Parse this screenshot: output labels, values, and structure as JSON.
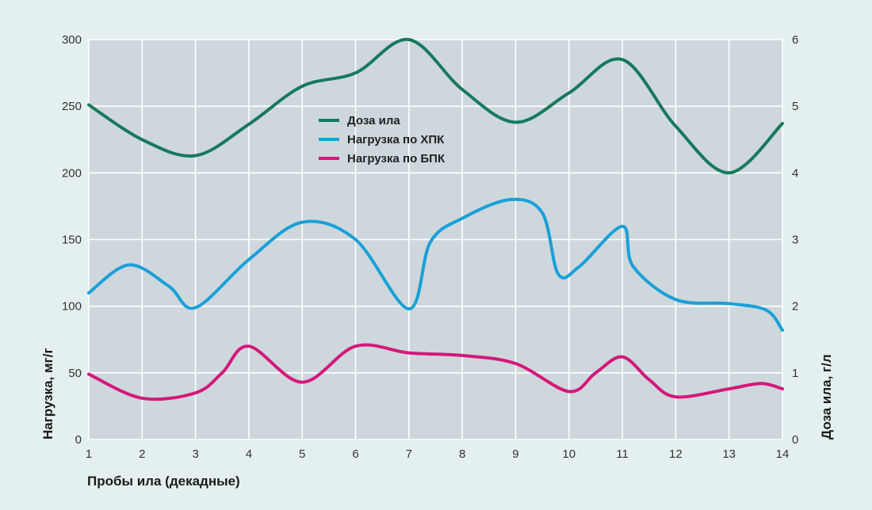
{
  "chart_data": {
    "type": "line",
    "xlabel": "Пробы ила (декадные)",
    "ylabel": "Нагрузка, мг/г",
    "y2label": "Доза ила, г/л",
    "x_ticks": [
      "1",
      "2",
      "3",
      "4",
      "5",
      "6",
      "7",
      "8",
      "9",
      "10",
      "11",
      "12",
      "13",
      "14"
    ],
    "y_ticks": [
      "0",
      "50",
      "100",
      "150",
      "200",
      "250",
      "300"
    ],
    "y2_ticks": [
      "0",
      "1",
      "2",
      "3",
      "4",
      "5",
      "6"
    ],
    "xlim": [
      1,
      14
    ],
    "ylim": [
      0,
      300
    ],
    "y2lim": [
      0,
      6
    ],
    "grid": true,
    "legend_position": "center",
    "series": [
      {
        "name": "Доза ила",
        "axis": "right",
        "color": "#17795d",
        "x": [
          1,
          2,
          3,
          4,
          5,
          6,
          7,
          8,
          9,
          10,
          11,
          12,
          13,
          14
        ],
        "y": [
          5.02,
          4.5,
          4.26,
          4.73,
          5.3,
          5.5,
          6.0,
          5.25,
          4.76,
          5.2,
          5.7,
          4.7,
          4.0,
          4.74
        ]
      },
      {
        "name": "Нагрузка по ХПК",
        "axis": "left",
        "color": "#1aa0d8",
        "x": [
          1,
          1.75,
          2.5,
          3,
          4,
          5,
          6,
          7,
          7.4,
          8,
          8.9,
          9.5,
          9.8,
          10.2,
          11,
          11.2,
          12,
          13,
          13.7,
          14
        ],
        "y": [
          110,
          131,
          115,
          99,
          135,
          163,
          150,
          98,
          148,
          166,
          180,
          170,
          124,
          130,
          160,
          130,
          105,
          102,
          97,
          82
        ]
      },
      {
        "name": "Нагрузка по БПК",
        "axis": "left",
        "color": "#d4187c",
        "x": [
          1,
          2,
          3,
          3.5,
          4,
          5,
          6,
          7,
          8,
          9,
          10,
          10.5,
          11,
          11.5,
          12,
          13,
          13.6,
          14
        ],
        "y": [
          49,
          31,
          35,
          50,
          70,
          43,
          70,
          65,
          63,
          57,
          36,
          50,
          62,
          45,
          32,
          38,
          42,
          38
        ]
      }
    ]
  }
}
